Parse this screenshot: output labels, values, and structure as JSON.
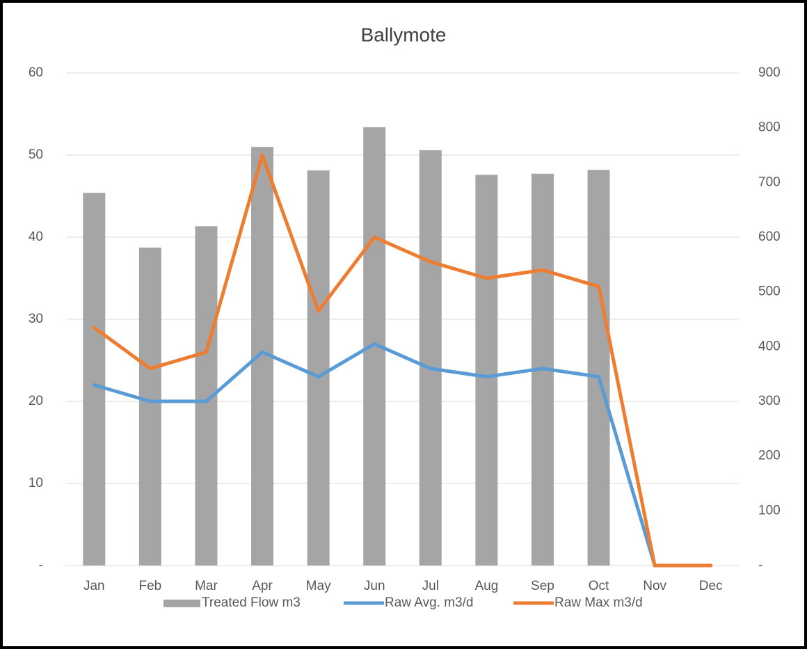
{
  "chart_data": {
    "type": "bar-line",
    "title": "Ballymote",
    "categories": [
      "Jan",
      "Feb",
      "Mar",
      "Apr",
      "May",
      "Jun",
      "Jul",
      "Aug",
      "Sep",
      "Oct",
      "Nov",
      "Dec"
    ],
    "series": [
      {
        "name": "Treated Flow m3",
        "type": "bar",
        "axis": "y2",
        "color": "#a5a5a5",
        "values": [
          681,
          581,
          620,
          765,
          722,
          801,
          759,
          714,
          716,
          723,
          0,
          0
        ]
      },
      {
        "name": "Raw Avg. m3/d",
        "type": "line",
        "color": "#5b9bd5",
        "values": [
          22,
          20,
          20,
          26,
          23,
          27,
          24,
          23,
          24,
          23,
          0,
          0
        ]
      },
      {
        "name": "Raw Max m3/d",
        "type": "line",
        "color": "#ed7d31",
        "values": [
          29,
          24,
          26,
          50,
          31,
          40,
          37,
          35,
          36,
          34,
          0,
          0
        ]
      }
    ],
    "ylim": [
      0,
      60
    ],
    "yticks": [
      {
        "value": 0,
        "label": "-"
      },
      10,
      20,
      30,
      40,
      50,
      60
    ],
    "y2lim": [
      0,
      900
    ],
    "y2ticks": [
      {
        "value": 0,
        "label": "-"
      },
      100,
      200,
      300,
      400,
      500,
      600,
      700,
      800,
      900
    ],
    "grid": true,
    "legend": "bottom"
  }
}
